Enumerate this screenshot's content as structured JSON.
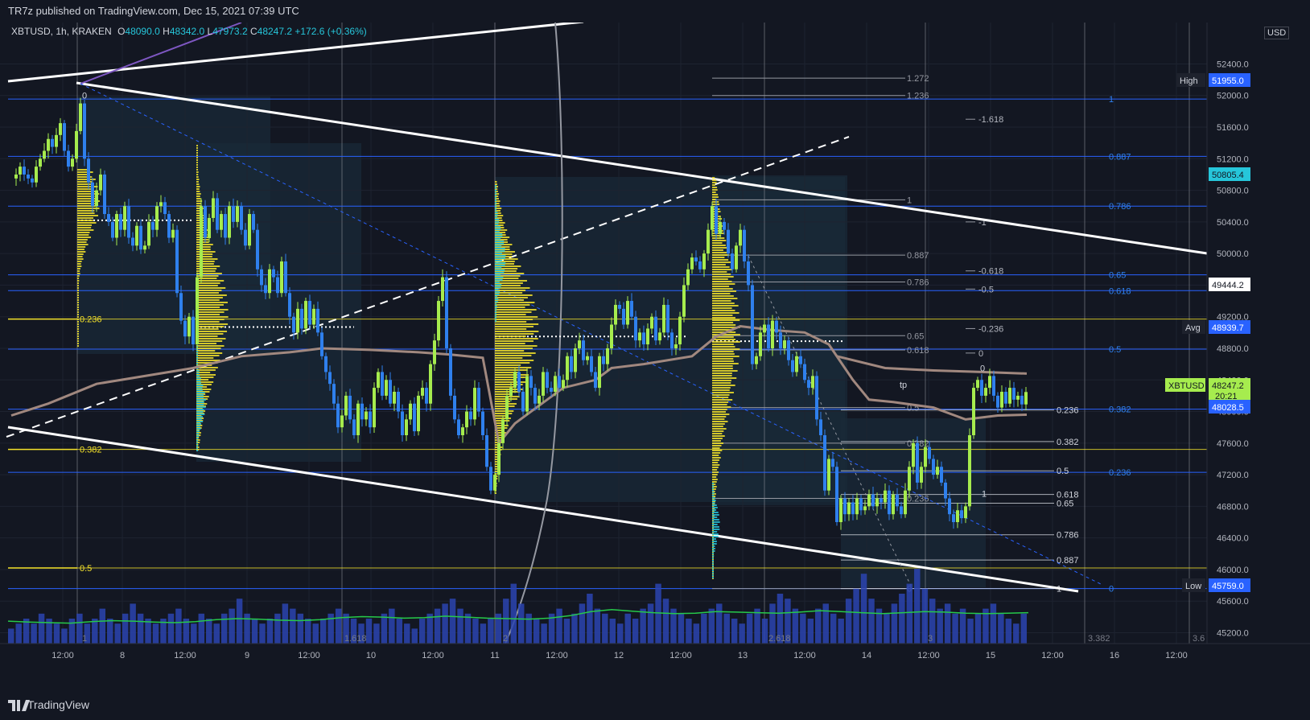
{
  "header": {
    "published": "TR7z published on TradingView.com, Dec 15, 2021 07:39 UTC",
    "symbol": "XBTUSD, 1h, KRAKEN",
    "o_label": "O",
    "o_value": "48090.0",
    "h_label": "H",
    "h_value": "48342.0",
    "l_label": "L",
    "l_value": "47973.2",
    "c_label": "C",
    "c_value": "48247.2",
    "change": "+172.6 (+0.36%)"
  },
  "footer": {
    "brand": "TradingView"
  },
  "colors": {
    "background": "#131722",
    "up": "#a6ec4e",
    "down": "#2f80ed",
    "fib_blue": "#2962ff",
    "fib_yellow": "#f5e32a",
    "fib_white": "#9598a1",
    "vwap": "#a1887f",
    "volume_ma": "#26c94a",
    "volume": "#2c44b0"
  },
  "chart_data": {
    "type": "candlestick",
    "title": "",
    "xlabel": "",
    "ylabel": "",
    "currency": "USD",
    "ylim": [
      45000,
      52800
    ],
    "y_ticks": [
      45200,
      45600,
      46000,
      46400,
      46800,
      47200,
      47600,
      48000,
      48400,
      48800,
      49200,
      49600,
      50000,
      50400,
      50800,
      51200,
      51600,
      52000,
      52400
    ],
    "x_tick_labels": [
      "12:00",
      "8",
      "12:00",
      "9",
      "12:00",
      "10",
      "12:00",
      "11",
      "12:00",
      "12",
      "12:00",
      "13",
      "12:00",
      "14",
      "12:00",
      "15",
      "12:00",
      "16",
      "12:00"
    ],
    "price_labels": [
      {
        "name": "High",
        "value": "51955.0"
      },
      {
        "name": "",
        "value": "50805.4"
      },
      {
        "name": "",
        "value": "49444.2"
      },
      {
        "name": "Avg",
        "value": "48939.7"
      },
      {
        "name": "XBTUSD",
        "value": "48247.2",
        "countdown": "20:21"
      },
      {
        "name": "",
        "value": "48028.5"
      },
      {
        "name": "Low",
        "value": "45759.0"
      }
    ],
    "fib_blue_levels": [
      {
        "label": "1",
        "price": 51955
      },
      {
        "label": "0.887",
        "price": 51230
      },
      {
        "label": "0.786",
        "price": 50600
      },
      {
        "label": "0.65",
        "price": 49730
      },
      {
        "label": "0.618",
        "price": 49530
      },
      {
        "label": "0.5",
        "price": 48790
      },
      {
        "label": "0.382",
        "price": 48030
      },
      {
        "label": "0.236",
        "price": 47230
      },
      {
        "label": "0",
        "price": 45759
      }
    ],
    "fib_yellow_levels": [
      {
        "label": "0.236",
        "price": 49170
      },
      {
        "label": "0.382",
        "price": 47520
      },
      {
        "label": "0.5",
        "price": 46020
      }
    ],
    "fib_white_levels": [
      {
        "label": "1.272",
        "price": 52220
      },
      {
        "label": "1.236",
        "price": 52000
      },
      {
        "label": "1",
        "price": 50680
      },
      {
        "label": "0.887",
        "price": 49980
      },
      {
        "label": "0.786",
        "price": 49640
      },
      {
        "label": "0.65",
        "price": 48960
      },
      {
        "label": "0.618",
        "price": 48780
      },
      {
        "label": "0.5",
        "price": 48050
      },
      {
        "label": "0.382",
        "price": 47600
      },
      {
        "label": "0.236",
        "price": 46900
      },
      {
        "label": "0",
        "price": 45759
      }
    ],
    "fib_ext_levels": [
      {
        "label": "-1.618",
        "price": 51700
      },
      {
        "label": "-1",
        "price": 50400
      },
      {
        "label": "-0.618",
        "price": 49780
      },
      {
        "label": "-0.5",
        "price": 49550
      },
      {
        "label": "-0.236",
        "price": 49050
      },
      {
        "label": "0",
        "price": 48740
      }
    ],
    "fib_right_levels": [
      {
        "label": "0.236",
        "price": 48020
      },
      {
        "label": "0.382",
        "price": 47620
      },
      {
        "label": "0.5",
        "price": 47250
      },
      {
        "label": "0.618",
        "price": 46950
      },
      {
        "label": "0.65",
        "price": 46840
      },
      {
        "label": "0.786",
        "price": 46440
      },
      {
        "label": "0.887",
        "price": 46120
      },
      {
        "label": "1",
        "price": 45759
      }
    ],
    "small_labels": [
      {
        "text": "0",
        "x": 102,
        "price": 51960
      },
      {
        "text": "0",
        "x": 1218,
        "price": 48510
      },
      {
        "text": "1",
        "x": 1220,
        "price": 46920
      },
      {
        "text": "tp",
        "x": 1118,
        "price": 48300
      }
    ],
    "time_fib_labels": [
      "1",
      "1.618",
      "2",
      "2.618",
      "3",
      "3.382",
      "3.6"
    ],
    "close_path": [
      [
        14,
        50950
      ],
      [
        20,
        51000
      ],
      [
        25,
        51100
      ],
      [
        30,
        51000
      ],
      [
        35,
        50950
      ],
      [
        40,
        50900
      ],
      [
        45,
        51100
      ],
      [
        50,
        51200
      ],
      [
        55,
        51300
      ],
      [
        60,
        51450
      ],
      [
        65,
        51350
      ],
      [
        70,
        51500
      ],
      [
        75,
        51650
      ],
      [
        80,
        51300
      ],
      [
        85,
        51100
      ],
      [
        90,
        51200
      ],
      [
        95,
        51550
      ],
      [
        100,
        51900
      ],
      [
        105,
        51200
      ],
      [
        110,
        50900
      ],
      [
        115,
        50600
      ],
      [
        120,
        50800
      ],
      [
        125,
        51000
      ],
      [
        130,
        50500
      ],
      [
        135,
        50400
      ],
      [
        140,
        50200
      ],
      [
        145,
        50500
      ],
      [
        150,
        50300
      ],
      [
        155,
        50600
      ],
      [
        160,
        50200
      ],
      [
        165,
        50100
      ],
      [
        170,
        50350
      ],
      [
        175,
        50050
      ],
      [
        180,
        50100
      ],
      [
        185,
        50400
      ],
      [
        190,
        50300
      ],
      [
        195,
        50600
      ],
      [
        200,
        50650
      ],
      [
        205,
        50500
      ],
      [
        210,
        50200
      ],
      [
        215,
        50300
      ],
      [
        220,
        49500
      ],
      [
        225,
        49150
      ],
      [
        230,
        48950
      ],
      [
        235,
        49200
      ],
      [
        240,
        48850
      ],
      [
        245,
        49700
      ],
      [
        250,
        50600
      ],
      [
        255,
        50200
      ],
      [
        260,
        50450
      ],
      [
        265,
        50700
      ],
      [
        270,
        50300
      ],
      [
        275,
        50500
      ],
      [
        280,
        50200
      ],
      [
        285,
        50600
      ],
      [
        290,
        50400
      ],
      [
        295,
        50600
      ],
      [
        300,
        50300
      ],
      [
        305,
        50100
      ],
      [
        310,
        50500
      ],
      [
        315,
        50300
      ],
      [
        320,
        49800
      ],
      [
        325,
        49600
      ],
      [
        330,
        49500
      ],
      [
        335,
        49800
      ],
      [
        340,
        49700
      ],
      [
        345,
        49500
      ],
      [
        350,
        49900
      ],
      [
        355,
        49500
      ],
      [
        360,
        49200
      ],
      [
        365,
        49000
      ],
      [
        370,
        49300
      ],
      [
        375,
        49050
      ],
      [
        380,
        49400
      ],
      [
        385,
        49100
      ],
      [
        390,
        49300
      ],
      [
        395,
        49000
      ],
      [
        400,
        48700
      ],
      [
        405,
        48500
      ],
      [
        410,
        48350
      ],
      [
        415,
        48100
      ],
      [
        420,
        47800
      ],
      [
        425,
        47950
      ],
      [
        430,
        48200
      ],
      [
        435,
        47900
      ],
      [
        440,
        47700
      ],
      [
        445,
        48100
      ],
      [
        450,
        47900
      ],
      [
        455,
        48000
      ],
      [
        460,
        47800
      ],
      [
        465,
        48300
      ],
      [
        470,
        48500
      ],
      [
        475,
        48200
      ],
      [
        480,
        48400
      ],
      [
        485,
        48100
      ],
      [
        490,
        48250
      ],
      [
        495,
        48000
      ],
      [
        500,
        47700
      ],
      [
        505,
        47900
      ],
      [
        510,
        48100
      ],
      [
        515,
        47750
      ],
      [
        520,
        48200
      ],
      [
        525,
        48300
      ],
      [
        530,
        48100
      ],
      [
        535,
        48600
      ],
      [
        540,
        48900
      ],
      [
        545,
        49400
      ],
      [
        550,
        49700
      ],
      [
        555,
        48800
      ],
      [
        560,
        48200
      ],
      [
        565,
        47900
      ],
      [
        570,
        47700
      ],
      [
        575,
        47800
      ],
      [
        580,
        48000
      ],
      [
        585,
        47900
      ],
      [
        590,
        48300
      ],
      [
        595,
        48000
      ],
      [
        600,
        47700
      ],
      [
        605,
        47300
      ],
      [
        610,
        47000
      ],
      [
        615,
        47200
      ],
      [
        620,
        47600
      ],
      [
        625,
        47900
      ],
      [
        630,
        48200
      ],
      [
        635,
        48300
      ],
      [
        640,
        48500
      ],
      [
        645,
        48250
      ],
      [
        650,
        48000
      ],
      [
        655,
        48450
      ],
      [
        660,
        48300
      ],
      [
        665,
        48100
      ],
      [
        670,
        48200
      ],
      [
        675,
        48500
      ],
      [
        680,
        48300
      ],
      [
        685,
        48250
      ],
      [
        690,
        48450
      ],
      [
        695,
        48300
      ],
      [
        700,
        48400
      ],
      [
        705,
        48700
      ],
      [
        710,
        48500
      ],
      [
        715,
        48800
      ],
      [
        720,
        48900
      ],
      [
        725,
        48650
      ],
      [
        730,
        48700
      ],
      [
        735,
        48500
      ],
      [
        740,
        48300
      ],
      [
        745,
        48700
      ],
      [
        750,
        48600
      ],
      [
        755,
        48800
      ],
      [
        760,
        49100
      ],
      [
        765,
        49350
      ],
      [
        770,
        49300
      ],
      [
        775,
        49100
      ],
      [
        780,
        49400
      ],
      [
        785,
        49200
      ],
      [
        790,
        48900
      ],
      [
        795,
        49000
      ],
      [
        800,
        48850
      ],
      [
        805,
        49050
      ],
      [
        810,
        49200
      ],
      [
        815,
        48900
      ],
      [
        820,
        49000
      ],
      [
        825,
        49350
      ],
      [
        830,
        49000
      ],
      [
        835,
        48800
      ],
      [
        840,
        48850
      ],
      [
        845,
        49200
      ],
      [
        850,
        49600
      ],
      [
        855,
        49800
      ],
      [
        860,
        49950
      ],
      [
        865,
        49900
      ],
      [
        870,
        49800
      ],
      [
        875,
        50000
      ],
      [
        880,
        50300
      ],
      [
        885,
        50600
      ],
      [
        890,
        50250
      ],
      [
        895,
        50400
      ],
      [
        900,
        50300
      ],
      [
        905,
        50000
      ],
      [
        910,
        49800
      ],
      [
        915,
        50100
      ],
      [
        920,
        50300
      ],
      [
        925,
        49900
      ],
      [
        930,
        49600
      ],
      [
        935,
        48600
      ],
      [
        940,
        48700
      ],
      [
        945,
        49000
      ],
      [
        950,
        49100
      ],
      [
        955,
        48800
      ],
      [
        960,
        49150
      ],
      [
        965,
        49000
      ],
      [
        970,
        48800
      ],
      [
        975,
        48900
      ],
      [
        980,
        48650
      ],
      [
        985,
        48500
      ],
      [
        990,
        48700
      ],
      [
        995,
        48600
      ],
      [
        1000,
        48400
      ],
      [
        1005,
        48300
      ],
      [
        1010,
        48450
      ],
      [
        1015,
        47900
      ],
      [
        1020,
        47700
      ],
      [
        1025,
        47000
      ],
      [
        1030,
        47400
      ],
      [
        1035,
        47300
      ],
      [
        1040,
        46600
      ],
      [
        1045,
        46900
      ],
      [
        1050,
        46700
      ],
      [
        1055,
        46850
      ],
      [
        1060,
        46700
      ],
      [
        1065,
        46900
      ],
      [
        1070,
        46750
      ],
      [
        1075,
        46800
      ],
      [
        1080,
        46950
      ],
      [
        1085,
        46800
      ],
      [
        1090,
        46900
      ],
      [
        1095,
        46850
      ],
      [
        1100,
        47000
      ],
      [
        1105,
        46700
      ],
      [
        1110,
        46950
      ],
      [
        1115,
        46800
      ],
      [
        1120,
        46700
      ],
      [
        1125,
        47000
      ],
      [
        1130,
        47300
      ],
      [
        1135,
        47600
      ],
      [
        1140,
        47100
      ],
      [
        1145,
        47300
      ],
      [
        1150,
        47550
      ],
      [
        1155,
        47400
      ],
      [
        1160,
        47200
      ],
      [
        1165,
        47300
      ],
      [
        1170,
        47100
      ],
      [
        1175,
        46900
      ],
      [
        1180,
        46700
      ],
      [
        1185,
        46600
      ],
      [
        1190,
        46750
      ],
      [
        1195,
        46650
      ],
      [
        1200,
        46800
      ],
      [
        1205,
        47700
      ],
      [
        1210,
        48300
      ],
      [
        1215,
        48400
      ],
      [
        1220,
        48200
      ],
      [
        1225,
        48300
      ],
      [
        1230,
        48450
      ],
      [
        1235,
        48200
      ],
      [
        1240,
        48050
      ],
      [
        1245,
        48250
      ],
      [
        1250,
        48100
      ],
      [
        1255,
        48300
      ],
      [
        1260,
        48150
      ],
      [
        1265,
        48200
      ],
      [
        1270,
        48090
      ],
      [
        1275,
        48247
      ]
    ],
    "vwap_path": [
      [
        14,
        47950
      ],
      [
        60,
        48100
      ],
      [
        120,
        48350
      ],
      [
        180,
        48450
      ],
      [
        240,
        48550
      ],
      [
        300,
        48700
      ],
      [
        360,
        48750
      ],
      [
        400,
        48800
      ],
      [
        460,
        48780
      ],
      [
        520,
        48750
      ],
      [
        560,
        48720
      ],
      [
        600,
        48680
      ],
      [
        620,
        47600
      ],
      [
        640,
        47850
      ],
      [
        660,
        48000
      ],
      [
        680,
        48150
      ],
      [
        700,
        48300
      ],
      [
        740,
        48400
      ],
      [
        760,
        48550
      ],
      [
        800,
        48600
      ],
      [
        860,
        48700
      ],
      [
        890,
        48950
      ],
      [
        920,
        49080
      ],
      [
        960,
        49030
      ],
      [
        1000,
        49000
      ],
      [
        1030,
        48850
      ],
      [
        1060,
        48400
      ],
      [
        1080,
        48150
      ],
      [
        1110,
        48120
      ],
      [
        1160,
        48050
      ],
      [
        1200,
        47900
      ],
      [
        1240,
        47950
      ],
      [
        1276,
        47960
      ]
    ],
    "vwap_upper_path": [
      [
        1040,
        48700
      ],
      [
        1100,
        48550
      ],
      [
        1160,
        48520
      ],
      [
        1220,
        48500
      ],
      [
        1276,
        48480
      ]
    ],
    "volume_values": [
      3,
      4,
      5,
      4,
      6,
      5,
      4,
      3,
      5,
      6,
      4,
      5,
      7,
      5,
      4,
      6,
      8,
      6,
      5,
      4,
      5,
      6,
      7,
      5,
      4,
      6,
      5,
      4,
      6,
      7,
      9,
      6,
      5,
      4,
      5,
      6,
      8,
      7,
      6,
      5,
      4,
      5,
      6,
      7,
      6,
      5,
      4,
      5,
      4,
      6,
      7,
      5,
      4,
      3,
      5,
      6,
      7,
      8,
      9,
      7,
      6,
      5,
      4,
      5,
      6,
      9,
      12,
      8,
      6,
      5,
      4,
      6,
      7,
      5,
      6,
      8,
      10,
      7,
      6,
      5,
      4,
      6,
      5,
      7,
      8,
      12,
      9,
      7,
      6,
      5,
      4,
      6,
      7,
      8,
      6,
      5,
      4,
      6,
      7,
      5,
      8,
      10,
      9,
      7,
      6,
      5,
      7,
      8,
      6,
      5,
      9,
      11,
      14,
      9,
      7,
      6,
      8,
      10,
      12,
      15,
      11,
      9,
      7,
      8,
      6,
      7,
      5,
      6,
      7,
      8,
      6,
      5,
      4,
      6
    ],
    "volume_ma_values": [
      4.5,
      4.3,
      4.2,
      4.1,
      4.4,
      4.6,
      4.5,
      4.3,
      4.2,
      4.4,
      4.8,
      5.0,
      4.9,
      4.7,
      4.6,
      4.8,
      5.2,
      5.4,
      5.3,
      5.1,
      5.2,
      5.5,
      5.3,
      5.1,
      5.0,
      4.9,
      5.1,
      5.6,
      6.4,
      6.8,
      6.5,
      6.2,
      6.0,
      6.1,
      6.4,
      6.3,
      6.2,
      6.1,
      6.3,
      6.6,
      6.4,
      6.2,
      6.0,
      6.2,
      6.4,
      6.3,
      6.1,
      6.0,
      6.1,
      6.2
    ]
  }
}
